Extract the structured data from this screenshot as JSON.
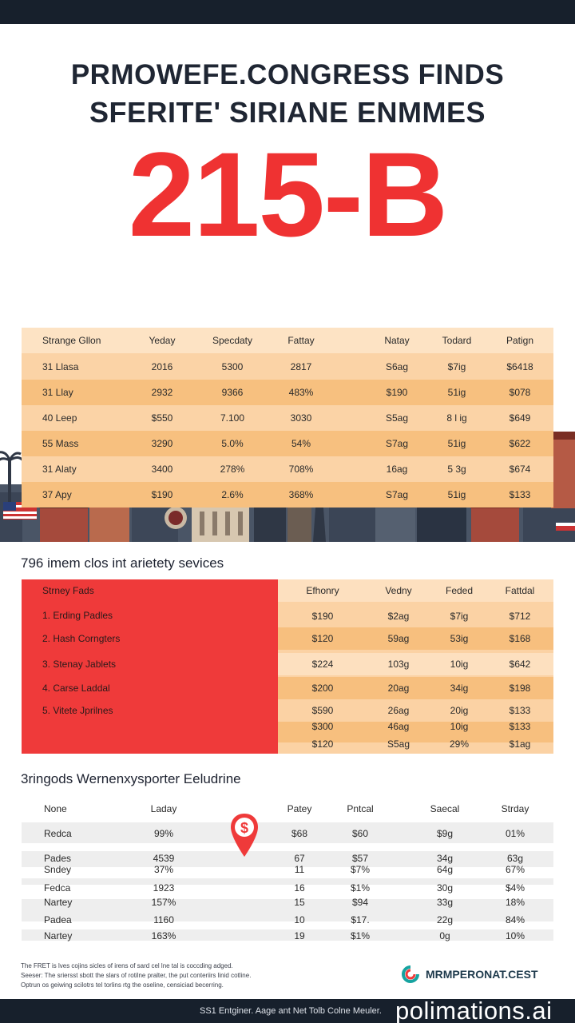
{
  "headline": {
    "line1": "PRMOWEFE.CONGRESS FINDS",
    "line2": "SFERITE' SIRIANE ENMMES",
    "big_figure": "215-B"
  },
  "table1": {
    "headers": [
      "Strange Gllon",
      "Yeday",
      "Specdaty",
      "Fattay",
      "Natay",
      "Todard",
      "Patign"
    ],
    "rows": [
      [
        "31 Llasa",
        "2016",
        "5300",
        "2817",
        "S6ag",
        "$7ig",
        "$6418"
      ],
      [
        "31 Llay",
        "2932",
        "9366",
        "483%",
        "$190",
        "51ig",
        "$078"
      ],
      [
        "40 Leep",
        "$550",
        "7.100",
        "3030",
        "S5ag",
        "8 l ig",
        "$649"
      ],
      [
        "55 Mass",
        "3290",
        "5.0%",
        "54%",
        "S7ag",
        "51ig",
        "$622"
      ],
      [
        "31 Alaty",
        "3400",
        "278%",
        "708%",
        "16ag",
        "5 3g",
        "$674"
      ],
      [
        "37 Apy",
        "$190",
        "2.6%",
        "368%",
        "S7ag",
        "51ig",
        "$133"
      ]
    ]
  },
  "section2": {
    "title": "796 imem clos int arietety sevices",
    "red_header": "Strney Fads",
    "headers": [
      "Efhonry",
      "Vedny",
      "Feded",
      "Fattdal"
    ],
    "names": [
      "1. Erding Padles",
      "2. Hash Corngters",
      "3. Stenay Jablets",
      "4. Carse Laddal",
      "5. Vitete Jprilnes"
    ],
    "rows": [
      [
        "$190",
        "$2ag",
        "$7ig",
        "$712"
      ],
      [
        "$120",
        "59ag",
        "53ig",
        "$168"
      ],
      [
        "$224",
        "103g",
        "10ig",
        "$642"
      ],
      [
        "$200",
        "20ag",
        "34ig",
        "$198"
      ],
      [
        "$590",
        "26ag",
        "20ig",
        "$133"
      ],
      [
        "$300",
        "46ag",
        "10ig",
        "$133"
      ],
      [
        "$120",
        "S5ag",
        "29%",
        "$1ag"
      ]
    ]
  },
  "section3": {
    "title": "3ringods Wernenxysporter Eeludrine",
    "headers": [
      "None",
      "Laday",
      "Patey",
      "Pntcal",
      "Saecal",
      "Strday"
    ],
    "rows": [
      [
        "Redca",
        "99%",
        "$68",
        "$60",
        "$9g",
        "01%"
      ],
      [
        "Pades",
        "4539",
        "67",
        "$57",
        "34g",
        "63g"
      ],
      [
        "Sndey",
        "37%",
        "11",
        "$7%",
        "64g",
        "67%"
      ],
      [
        "Fedca",
        "1923",
        "16",
        "$1%",
        "30g",
        "$4%"
      ],
      [
        "Nartey",
        "157%",
        "15",
        "$94",
        "33g",
        "18%"
      ],
      [
        "Padea",
        "1160",
        "10",
        "$17.",
        "22g",
        "84%"
      ],
      [
        "Nartey",
        "163%",
        "19",
        "$1%",
        "0g",
        "10%"
      ]
    ],
    "pin_symbol": "$"
  },
  "footnotes": [
    "The FRET is lves cojins sicles of irens of sard cel lne tal is coccding adged.",
    "Seeser: The sriersst sbott the slars of rotilne pralter, the put conteriirs linid cotline.",
    "Optrun os geiwing scilotrs tel torlins rtg the oseline, censiciad becerring."
  ],
  "logo": {
    "text": "MRMPERONAT.CEST"
  },
  "bottom": {
    "caption": "SS1 Entginer. Aage ant Net Tolb Colne Meuler.",
    "watermark": "polimations.ai"
  },
  "colors": {
    "accent_red": "#ef3232",
    "table_orange": "#fbd3a6",
    "band_orange": "#f7c07f",
    "dark_navy": "#17202c"
  }
}
